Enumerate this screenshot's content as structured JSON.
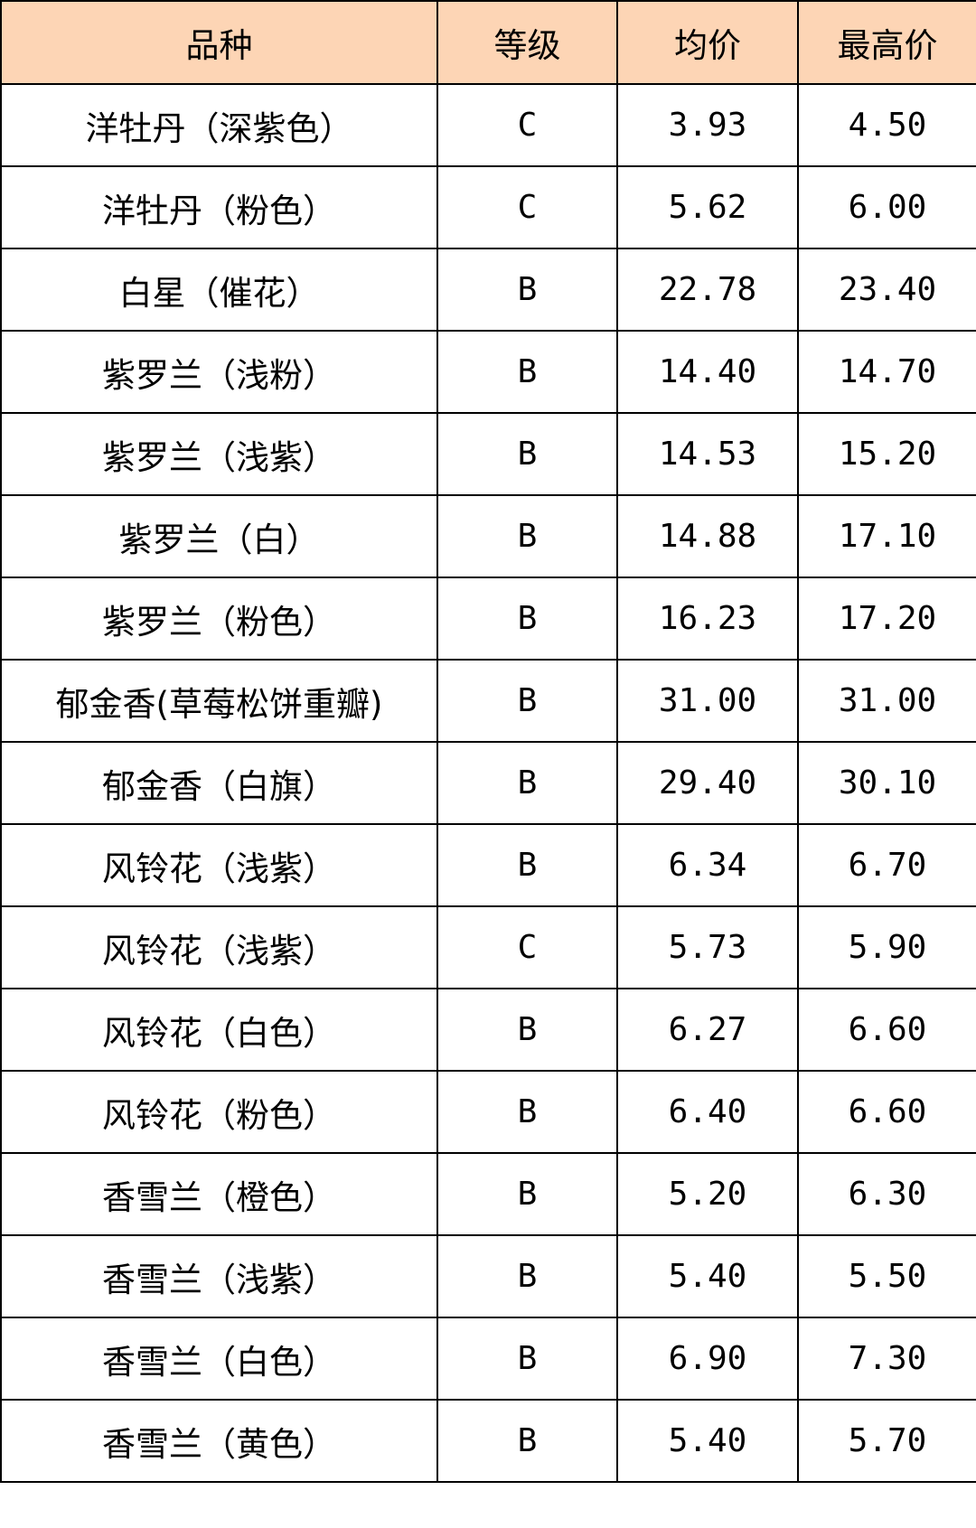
{
  "header_color": "#FDD5B5",
  "headers": [
    "品种",
    "等级",
    "均价",
    "最高价"
  ],
  "rows": [
    [
      "洋牡丹（深紫色）",
      "C",
      "3.93",
      "4.50"
    ],
    [
      "洋牡丹（粉色）",
      "C",
      "5.62",
      "6.00"
    ],
    [
      "白星（催花）",
      "B",
      "22.78",
      "23.40"
    ],
    [
      "紫罗兰（浅粉）",
      "B",
      "14.40",
      "14.70"
    ],
    [
      "紫罗兰（浅紫）",
      "B",
      "14.53",
      "15.20"
    ],
    [
      "紫罗兰（白）",
      "B",
      "14.88",
      "17.10"
    ],
    [
      "紫罗兰（粉色）",
      "B",
      "16.23",
      "17.20"
    ],
    [
      "郁金香(草莓松饼重瓣)",
      "B",
      "31.00",
      "31.00"
    ],
    [
      "郁金香（白旗）",
      "B",
      "29.40",
      "30.10"
    ],
    [
      "风铃花（浅紫）",
      "B",
      "6.34",
      "6.70"
    ],
    [
      "风铃花（浅紫）",
      "C",
      "5.73",
      "5.90"
    ],
    [
      "风铃花（白色）",
      "B",
      "6.27",
      "6.60"
    ],
    [
      "风铃花（粉色）",
      "B",
      "6.40",
      "6.60"
    ],
    [
      "香雪兰（橙色）",
      "B",
      "5.20",
      "6.30"
    ],
    [
      "香雪兰（浅紫）",
      "B",
      "5.40",
      "5.50"
    ],
    [
      "香雪兰（白色）",
      "B",
      "6.90",
      "7.30"
    ],
    [
      "香雪兰（黄色）",
      "B",
      "5.40",
      "5.70"
    ]
  ]
}
